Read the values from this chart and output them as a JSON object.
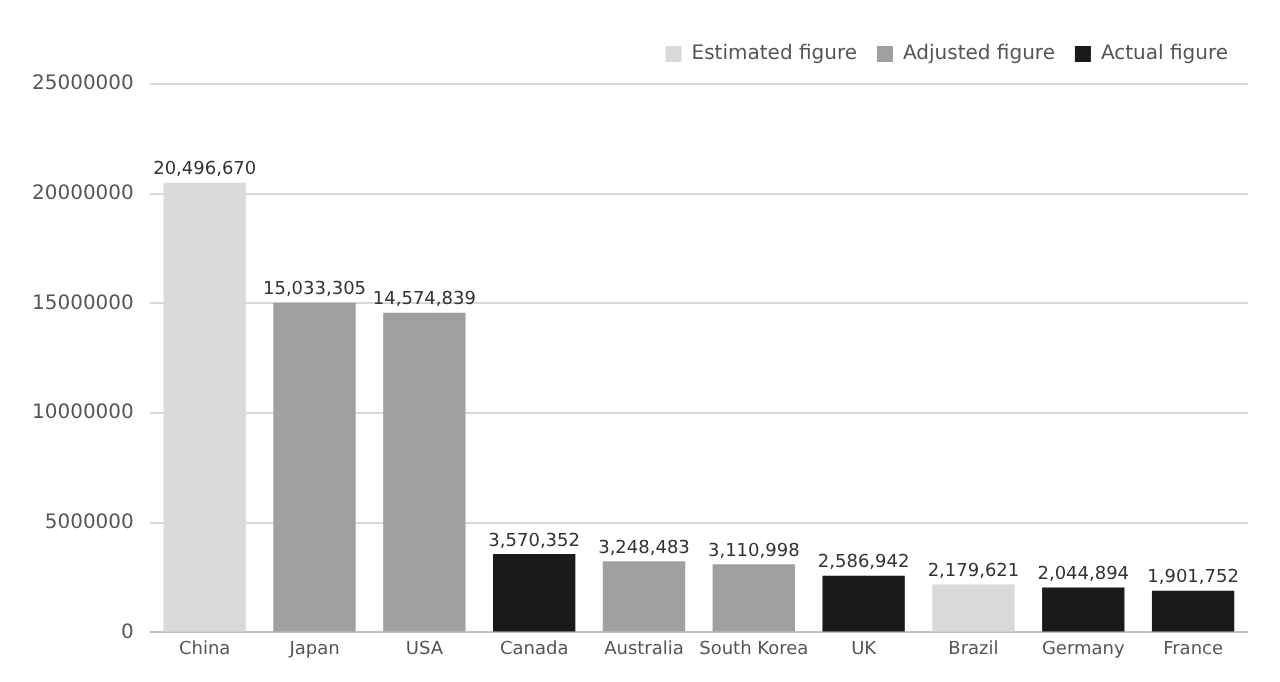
{
  "chart_data": {
    "type": "bar",
    "categories": [
      "China",
      "Japan",
      "USA",
      "Canada",
      "Australia",
      "South Korea",
      "UK",
      "Brazil",
      "Germany",
      "France"
    ],
    "series": [
      {
        "name": "Estimated figure",
        "color": "#d9d9d9",
        "values": [
          20496670,
          null,
          null,
          null,
          null,
          null,
          null,
          2179621,
          null,
          null
        ],
        "value_labels": [
          "20,496,670",
          null,
          null,
          null,
          null,
          null,
          null,
          "2,179,621",
          null,
          null
        ]
      },
      {
        "name": "Adjusted figure",
        "color": "#a0a0a0",
        "values": [
          null,
          15033305,
          14574839,
          null,
          3248483,
          3110998,
          null,
          null,
          null,
          null
        ],
        "value_labels": [
          null,
          "15,033,305",
          "14,574,839",
          null,
          "3,248,483",
          "3,110,998",
          null,
          null,
          null,
          null
        ]
      },
      {
        "name": "Actual figure",
        "color": "#1a1a1a",
        "values": [
          null,
          null,
          null,
          3570352,
          null,
          null,
          2586942,
          null,
          2044894,
          1901752
        ],
        "value_labels": [
          null,
          null,
          null,
          "3,570,352",
          null,
          null,
          "2,586,942",
          null,
          "2,044,894",
          "1,901,752"
        ]
      }
    ],
    "ylim": [
      0,
      25000000
    ],
    "yticks": [
      0,
      5000000,
      10000000,
      15000000,
      20000000,
      25000000
    ],
    "grid": "y",
    "legend": "top right"
  }
}
